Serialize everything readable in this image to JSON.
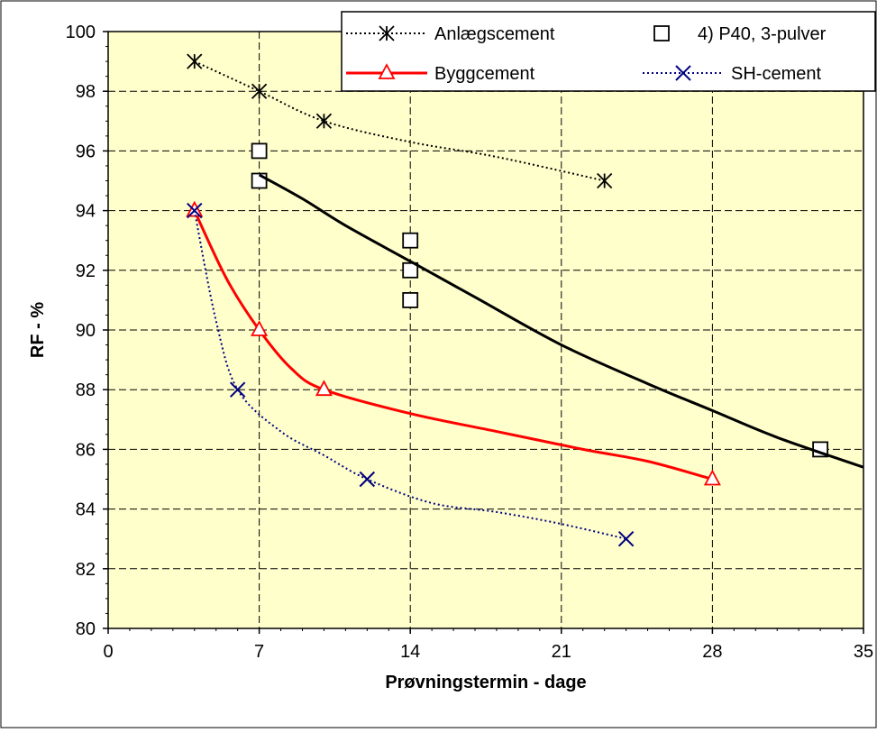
{
  "chart_data": {
    "type": "line",
    "title": "",
    "xlabel": "Prøvningstermin - dage",
    "ylabel": "RF - %",
    "xlim": [
      0,
      35
    ],
    "ylim": [
      80,
      100
    ],
    "xticks": [
      0,
      7,
      14,
      21,
      28,
      35
    ],
    "xtick_labels": [
      "0",
      "7",
      "14",
      "21",
      "28",
      "35"
    ],
    "yticks": [
      80,
      82,
      84,
      86,
      88,
      90,
      92,
      94,
      96,
      98,
      100
    ],
    "ytick_labels": [
      "80",
      "82",
      "84",
      "86",
      "88",
      "90",
      "92",
      "94",
      "96",
      "98",
      "100"
    ],
    "grid": true,
    "plot_background": "#FFFFCC",
    "legend_position": "top-right",
    "series": [
      {
        "name": "Anlægscement",
        "marker": "asterisk",
        "line": "dotted",
        "color": "#000000",
        "points": [
          [
            4,
            99
          ],
          [
            7,
            98
          ],
          [
            10,
            97
          ],
          [
            23,
            95
          ]
        ],
        "curve": [
          [
            4,
            99
          ],
          [
            7,
            98
          ],
          [
            10,
            97
          ],
          [
            14,
            96.3
          ],
          [
            18,
            95.8
          ],
          [
            23,
            95
          ]
        ]
      },
      {
        "name": "4) P40, 3-pulver",
        "marker": "square",
        "line": "none",
        "color": "#000000",
        "points": [
          [
            7,
            96
          ],
          [
            7,
            95
          ],
          [
            14,
            93
          ],
          [
            14,
            92
          ],
          [
            14,
            91
          ],
          [
            33,
            86
          ]
        ]
      },
      {
        "name": "Byggcement",
        "marker": "triangle",
        "line": "solid",
        "color": "#FF0000",
        "points": [
          [
            4,
            94
          ],
          [
            7,
            90
          ],
          [
            10,
            88
          ],
          [
            28,
            85
          ]
        ],
        "curve": [
          [
            4,
            94
          ],
          [
            5.5,
            91.7
          ],
          [
            7,
            90
          ],
          [
            8.5,
            88.7
          ],
          [
            10,
            88
          ],
          [
            14,
            87.2
          ],
          [
            18,
            86.6
          ],
          [
            22,
            86
          ],
          [
            25,
            85.6
          ],
          [
            28,
            85
          ]
        ]
      },
      {
        "name": "SH-cement",
        "marker": "x",
        "line": "dotted",
        "color": "#000080",
        "points": [
          [
            4,
            94
          ],
          [
            6,
            88
          ],
          [
            12,
            85
          ],
          [
            24,
            83
          ]
        ],
        "curve": [
          [
            4,
            94
          ],
          [
            5,
            90.3
          ],
          [
            6,
            88
          ],
          [
            8,
            86.6
          ],
          [
            10,
            85.8
          ],
          [
            12,
            85
          ],
          [
            15,
            84.2
          ],
          [
            18,
            83.9
          ],
          [
            21,
            83.5
          ],
          [
            24,
            83
          ]
        ]
      },
      {
        "name": "",
        "marker": "none",
        "line": "solid",
        "color": "#000000",
        "points": [],
        "curve": [
          [
            7,
            95.2
          ],
          [
            9,
            94.4
          ],
          [
            11,
            93.5
          ],
          [
            14,
            92.3
          ],
          [
            17,
            91.1
          ],
          [
            21,
            89.5
          ],
          [
            25,
            88.2
          ],
          [
            28,
            87.3
          ],
          [
            31,
            86.4
          ],
          [
            35,
            85.4
          ]
        ]
      }
    ]
  },
  "legend": {
    "items": [
      {
        "label": "Anlægscement",
        "marker": "asterisk",
        "line": "dotted",
        "color": "#000000"
      },
      {
        "label": "4) P40, 3-pulver",
        "marker": "square",
        "line": "none",
        "color": "#000000"
      },
      {
        "label": "Byggcement",
        "marker": "triangle",
        "line": "solid",
        "color": "#FF0000"
      },
      {
        "label": "SH-cement",
        "marker": "x",
        "line": "dotted",
        "color": "#000080"
      }
    ]
  }
}
